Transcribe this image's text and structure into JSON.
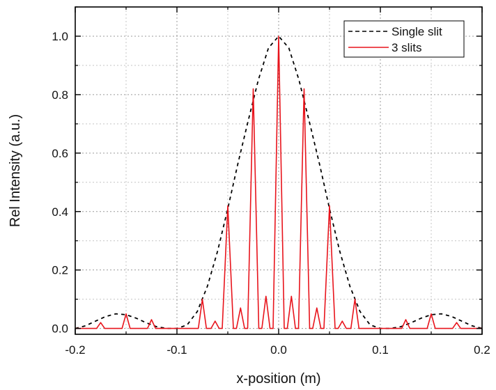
{
  "chart_data": {
    "type": "line",
    "title": "",
    "xlabel": "x-position (m)",
    "ylabel": "Rel Intensity (a.u.)",
    "xlim": [
      -0.2,
      0.2
    ],
    "ylim": [
      -0.02,
      1.1
    ],
    "x_ticks": [
      "-0.2",
      "-0.1",
      "0.0",
      "0.1",
      "0.2"
    ],
    "y_ticks": [
      "0.0",
      "0.2",
      "0.4",
      "0.6",
      "0.8",
      "1.0"
    ],
    "grid": true,
    "legend_position": "top-right",
    "series": [
      {
        "name": "Single slit",
        "style": "dashed",
        "color": "#000000",
        "x": [
          -0.2,
          -0.19,
          -0.18,
          -0.17,
          -0.16,
          -0.15,
          -0.14,
          -0.13,
          -0.12,
          -0.11,
          -0.1,
          -0.09,
          -0.08,
          -0.07,
          -0.06,
          -0.05,
          -0.04,
          -0.03,
          -0.02,
          -0.01,
          0.0,
          0.01,
          0.02,
          0.03,
          0.04,
          0.05,
          0.06,
          0.07,
          0.08,
          0.09,
          0.1,
          0.11,
          0.12,
          0.13,
          0.14,
          0.15,
          0.16,
          0.17,
          0.18,
          0.19,
          0.2
        ],
        "y": [
          0.0,
          0.009,
          0.025,
          0.041,
          0.05,
          0.047,
          0.035,
          0.019,
          0.006,
          0.0,
          0.0,
          0.012,
          0.058,
          0.145,
          0.265,
          0.41,
          0.565,
          0.71,
          0.85,
          0.96,
          1.0,
          0.96,
          0.85,
          0.71,
          0.565,
          0.41,
          0.265,
          0.145,
          0.058,
          0.012,
          0.0,
          0.0,
          0.006,
          0.019,
          0.035,
          0.047,
          0.05,
          0.041,
          0.025,
          0.009,
          0.0
        ]
      },
      {
        "name": "3 slits",
        "style": "solid",
        "color": "#e8141c",
        "peaks": [
          {
            "x": -0.175,
            "y": 0.02
          },
          {
            "x": -0.15,
            "y": 0.05
          },
          {
            "x": -0.125,
            "y": 0.03
          },
          {
            "x": -0.075,
            "y": 0.1
          },
          {
            "x": -0.0625,
            "y": 0.025
          },
          {
            "x": -0.05,
            "y": 0.42
          },
          {
            "x": -0.0375,
            "y": 0.07
          },
          {
            "x": -0.025,
            "y": 0.82
          },
          {
            "x": -0.0125,
            "y": 0.11
          },
          {
            "x": 0.0,
            "y": 1.0
          },
          {
            "x": 0.0125,
            "y": 0.11
          },
          {
            "x": 0.025,
            "y": 0.82
          },
          {
            "x": 0.0375,
            "y": 0.07
          },
          {
            "x": 0.05,
            "y": 0.42
          },
          {
            "x": 0.0625,
            "y": 0.025
          },
          {
            "x": 0.075,
            "y": 0.1
          },
          {
            "x": 0.125,
            "y": 0.03
          },
          {
            "x": 0.15,
            "y": 0.05
          },
          {
            "x": 0.175,
            "y": 0.02
          }
        ]
      }
    ]
  }
}
